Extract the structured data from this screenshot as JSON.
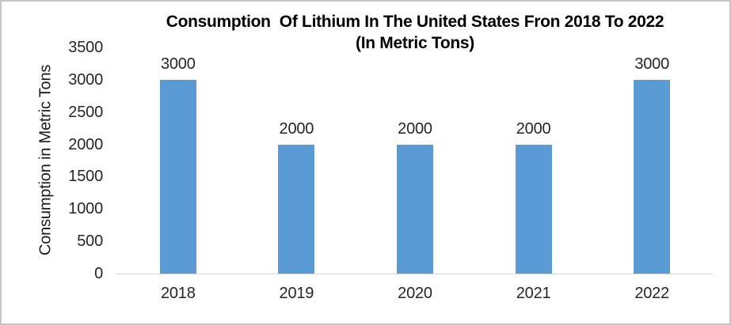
{
  "chart": {
    "title_line1": "Consumption  Of Lithium In The United States Fron 2018 To 2022",
    "title_line2": "(In Metric Tons)",
    "y_axis_title": "Consumption in Metric Tons"
  },
  "chart_data": {
    "type": "bar",
    "title": "Consumption  Of Lithium In The United States Fron 2018 To 2022 (In Metric Tons)",
    "categories": [
      "2018",
      "2019",
      "2020",
      "2021",
      "2022"
    ],
    "values": [
      3000,
      2000,
      2000,
      2000,
      3000
    ],
    "data_labels": [
      "3000",
      "2000",
      "2000",
      "2000",
      "3000"
    ],
    "xlabel": "",
    "ylabel": "Consumption in Metric Tons",
    "ylim": [
      0,
      3500
    ],
    "yticks": [
      0,
      500,
      1000,
      1500,
      2000,
      2500,
      3000,
      3500
    ],
    "grid": false,
    "legend": false,
    "bar_color": "#5B9BD5",
    "axis_line_color": "#D6D6D6",
    "background_color": "#FFFFFF",
    "border_color": "#C6C6C6"
  }
}
